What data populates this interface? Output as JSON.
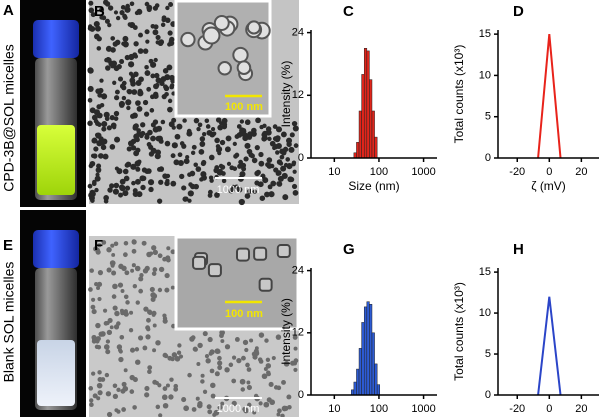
{
  "row_labels": [
    "CPD-3B@SOL micelles",
    "Blank SOL micelles"
  ],
  "photos": [
    {
      "letter": "A"
    },
    {
      "letter": "B",
      "scale_bar": "1000 nm",
      "inset_scale_bar": "100 nm"
    },
    {
      "letter": "E"
    },
    {
      "letter": "F",
      "scale_bar": "1000 nm",
      "inset_scale_bar": "100 nm"
    }
  ],
  "chart_data": [
    {
      "type": "histogram",
      "panel_label": "C",
      "x_label": "Size (nm)",
      "y_label": "Intensity (%)",
      "bins": [
        27.4,
        31.3,
        35.8,
        40.9,
        46.8,
        53.5,
        61.1,
        69.8,
        79.8,
        91.2
      ],
      "values": [
        1,
        3,
        9,
        16,
        21,
        20.5,
        15,
        9,
        4
      ],
      "color": "#e0251b",
      "xscale": "log",
      "xlim": [
        3,
        2000
      ],
      "xticks": [
        10,
        100,
        1000
      ],
      "ylim": [
        0,
        24.5
      ],
      "yticks": [
        0,
        12,
        24
      ]
    },
    {
      "type": "line",
      "panel_label": "D",
      "x_label": "ζ (mV)",
      "y_label": "Total counts (x10³)",
      "x": [
        -7,
        0,
        7
      ],
      "values": [
        0,
        15,
        0
      ],
      "color": "#e8231b",
      "xlim": [
        -32,
        31
      ],
      "xticks": [
        -20,
        0,
        20
      ],
      "ylim": [
        0,
        15.5
      ],
      "yticks": [
        0,
        5,
        10,
        15
      ]
    },
    {
      "type": "histogram",
      "panel_label": "G",
      "x_label": "Size (nm)",
      "y_label": "Intensity (%)",
      "bins": [
        24.0,
        27.4,
        31.3,
        35.8,
        40.9,
        46.8,
        53.5,
        61.1,
        69.8,
        79.8,
        91.2,
        104.2
      ],
      "values": [
        1,
        2.5,
        5,
        9,
        14,
        17,
        18,
        17.5,
        12,
        6,
        2
      ],
      "color": "#2d5bd3",
      "xscale": "log",
      "xlim": [
        3,
        2000
      ],
      "xticks": [
        10,
        100,
        1000
      ],
      "ylim": [
        0,
        24.5
      ],
      "yticks": [
        0,
        12,
        24
      ]
    },
    {
      "type": "line",
      "panel_label": "H",
      "x_label": "ζ (mV)",
      "y_label": "Total counts (x10³)",
      "x": [
        -7,
        0,
        7
      ],
      "values": [
        0,
        12,
        0
      ],
      "color": "#2b45c8",
      "xlim": [
        -32,
        31
      ],
      "xticks": [
        -20,
        0,
        20
      ],
      "ylim": [
        0,
        15.5
      ],
      "yticks": [
        0,
        5,
        10,
        15
      ]
    }
  ]
}
